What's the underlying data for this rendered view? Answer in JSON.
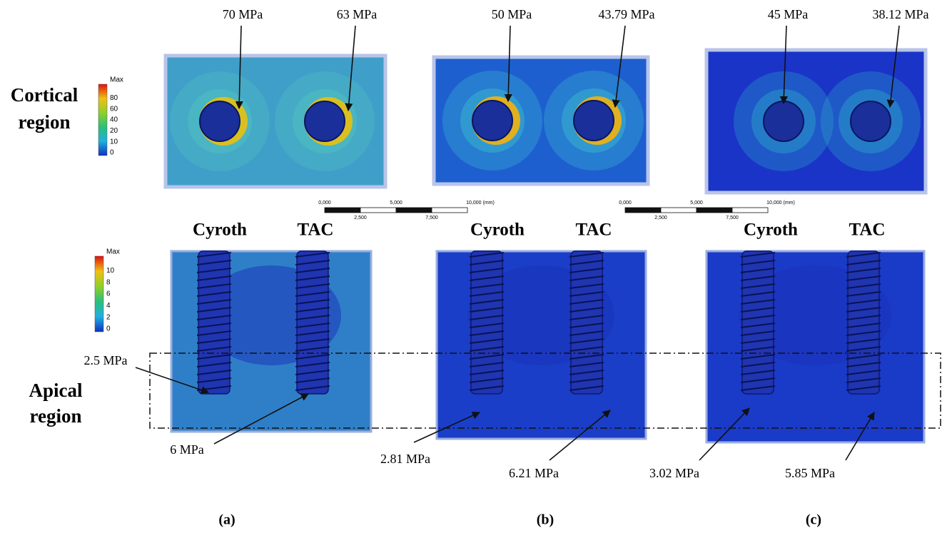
{
  "cortical_region": [
    "Cortical",
    "region"
  ],
  "apical_region": [
    "Apical",
    "region"
  ],
  "cortical_legend": [
    "Max",
    "80",
    "60",
    "40",
    "20",
    "10",
    "0"
  ],
  "apical_legend": [
    "Max",
    "10",
    "8",
    "6",
    "4",
    "2",
    "0"
  ],
  "scale_bar": {
    "top": [
      "0,000",
      "5,000",
      "10,000 (mm)"
    ],
    "bottom": [
      "2,500",
      "7,500"
    ]
  },
  "panels": [
    {
      "label": "(a)",
      "cortical": [
        "70 MPa",
        "63 MPa"
      ],
      "implants": [
        "Cyroth",
        "TAC"
      ],
      "apical": [
        "2.5 MPa",
        "6 MPa"
      ]
    },
    {
      "label": "(b)",
      "cortical": [
        "50 MPa",
        "43.79 MPa"
      ],
      "implants": [
        "Cyroth",
        "TAC"
      ],
      "apical": [
        "2.81 MPa",
        "6.21 MPa"
      ]
    },
    {
      "label": "(c)",
      "cortical": [
        "45 MPa",
        "38.12 MPa"
      ],
      "implants": [
        "Cyroth",
        "TAC"
      ],
      "apical": [
        "3.02 MPa",
        "5.85 MPa"
      ]
    }
  ]
}
